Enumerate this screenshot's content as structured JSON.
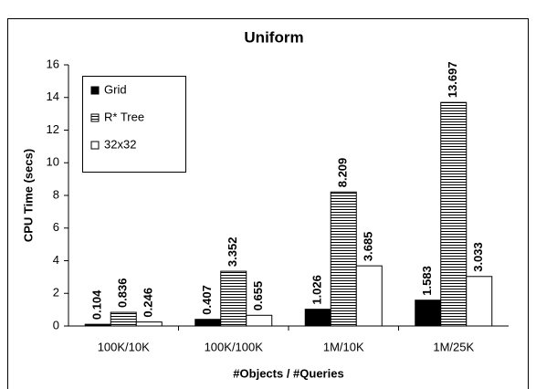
{
  "chart_data": {
    "type": "bar",
    "title": "Uniform",
    "xlabel": "#Objects / #Queries",
    "ylabel": "CPU Time (secs)",
    "categories": [
      "100K/10K",
      "100K/100K",
      "1M/10K",
      "1M/25K"
    ],
    "series": [
      {
        "name": "Grid",
        "color": "#000000",
        "values": [
          0.104,
          0.407,
          1.026,
          1.583
        ]
      },
      {
        "name": "R* Tree",
        "color": "#ffffff",
        "hatch": "horizontal",
        "values": [
          0.836,
          3.352,
          8.209,
          13.697
        ]
      },
      {
        "name": "32x32",
        "color": "#ffffff",
        "values": [
          0.246,
          0.655,
          3.685,
          3.033
        ]
      }
    ],
    "ylim": [
      0,
      16
    ],
    "yticks": [
      0,
      2,
      4,
      6,
      8,
      10,
      12,
      14,
      16
    ],
    "grid": false,
    "legend": "top-left"
  }
}
